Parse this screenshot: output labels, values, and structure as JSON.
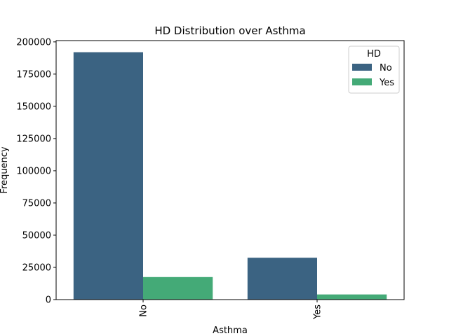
{
  "chart_data": {
    "type": "bar",
    "title": "HD Distribution over Asthma",
    "xlabel": "Asthma",
    "ylabel": "Frequency",
    "categories": [
      "No",
      "Yes"
    ],
    "series": [
      {
        "name": "No",
        "values": [
          192000,
          32500
        ],
        "color": "#3b6382"
      },
      {
        "name": "Yes",
        "values": [
          17500,
          4000
        ],
        "color": "#44aa77"
      }
    ],
    "ylim": [
      0,
      201000
    ],
    "yticks": [
      0,
      25000,
      50000,
      75000,
      100000,
      125000,
      150000,
      175000,
      200000
    ],
    "ytick_labels": [
      "0",
      "25000",
      "50000",
      "75000",
      "100000",
      "125000",
      "150000",
      "175000",
      "200000"
    ],
    "xtick_rotation": "vertical",
    "legend": {
      "title": "HD",
      "placement": "top-right",
      "entries": [
        "No",
        "Yes"
      ]
    },
    "grid": false
  }
}
